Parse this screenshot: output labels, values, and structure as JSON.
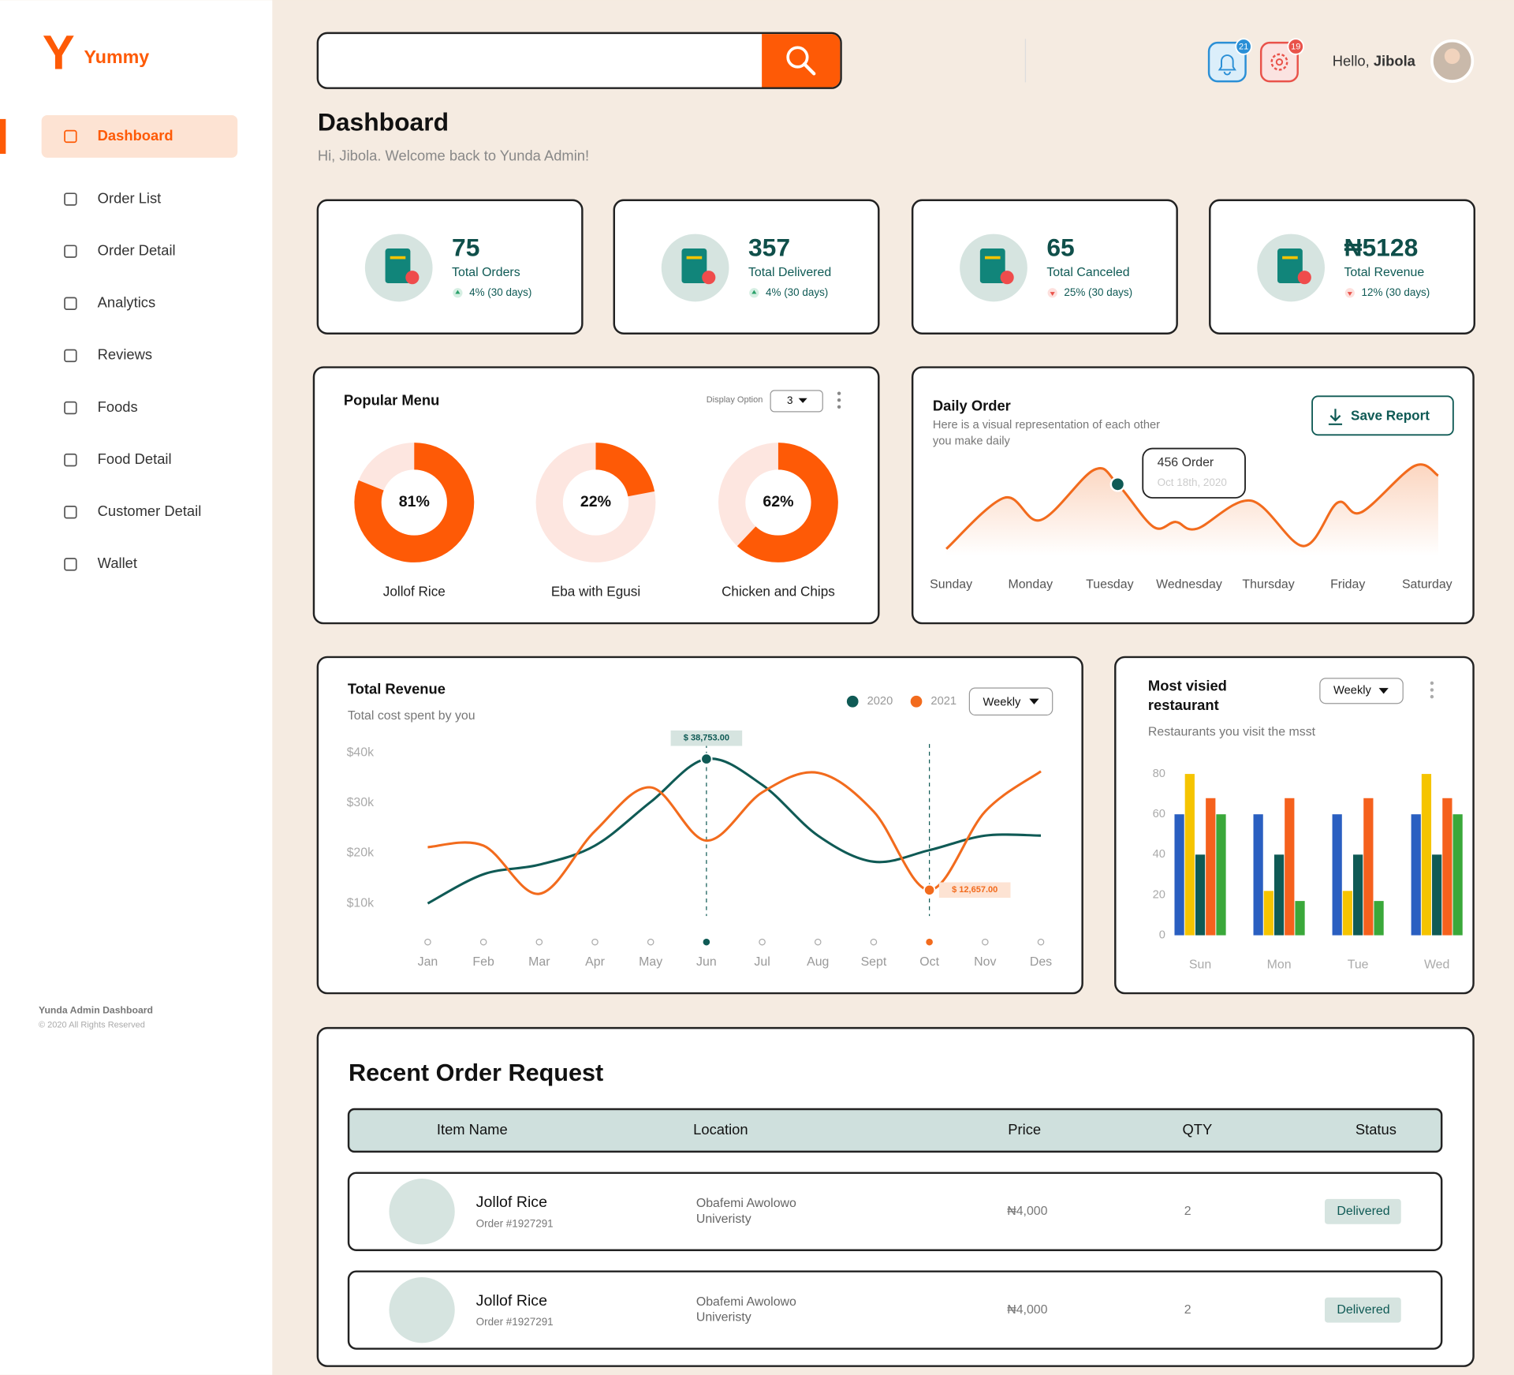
{
  "sidebar": {
    "logo": "Y",
    "brand": "Yummy",
    "active": 0,
    "nav": [
      "Dashboard",
      "Order List",
      "Order Detail",
      "Analytics",
      "Reviews",
      "Foods",
      "Food Detail",
      "Customer Detail",
      "Wallet"
    ],
    "footer_title": "Yunda Admin Dashboard",
    "footer_note": "© 2020 All Rights Reserved"
  },
  "header": {
    "greeting": "Hello,",
    "user": "Jibola",
    "notifications": 21,
    "alerts": 19
  },
  "page": {
    "title": "Dashboard",
    "subtitle": "Hi, Jibola. Welcome back to Yunda Admin!"
  },
  "stats": [
    {
      "value": "75",
      "label": "Total Orders",
      "change": "4% (30 days)",
      "trend": "up"
    },
    {
      "value": "357",
      "label": "Total Delivered",
      "change": "4% (30 days)",
      "trend": "up"
    },
    {
      "value": "65",
      "label": "Total Canceled",
      "change": "25% (30 days)",
      "trend": "down"
    },
    {
      "value": "₦5128",
      "label": "Total Revenue",
      "change": "12% (30 days)",
      "trend": "down"
    }
  ],
  "popular_menu": {
    "type": "donut",
    "title": "Popular Menu",
    "display_option_label": "Display Option",
    "display_option": 3,
    "categories": [
      "Jollof Rice",
      "Eba with Egusi",
      "Chicken and Chips"
    ],
    "values": [
      81,
      22,
      62
    ],
    "value_labels": [
      "81%",
      "22%",
      "62%"
    ],
    "color": "#fe5a06",
    "track_color": "#fde6e0"
  },
  "daily_order": {
    "type": "line",
    "title": "Daily Order",
    "subtitle": [
      "Here is a visual representation of each other",
      "you make daily"
    ],
    "button": "Save Report",
    "tooltip": {
      "title": "456 Order",
      "date": "Oct 18th, 2020",
      "index": 4
    },
    "categories": [
      "Sunday",
      "Monday",
      "Tuesday",
      "Wednesday",
      "Thursday",
      "Friday",
      "Saturday"
    ],
    "x": [
      -0.06,
      0.67,
      1.13,
      1.8,
      2.1,
      2.55,
      2.83,
      3.1,
      3.78,
      4.44,
      4.87,
      5.17,
      5.84,
      6.14
    ],
    "values": [
      113,
      384,
      266,
      532,
      456,
      230,
      256,
      220,
      369,
      128,
      358,
      307,
      553,
      502
    ],
    "xlim": [
      0,
      6
    ],
    "ylim": [
      0,
      600
    ],
    "color": "#f26b1d"
  },
  "total_revenue": {
    "type": "line",
    "title": "Total Revenue",
    "subtitle": "Total cost spent by you",
    "dropdown": "Weekly",
    "categories": [
      "Jan",
      "Feb",
      "Mar",
      "Apr",
      "May",
      "Jun",
      "Jul",
      "Aug",
      "Sept",
      "Oct",
      "Nov",
      "Des"
    ],
    "series": [
      {
        "name": "2020",
        "color": "#0f5a55",
        "values": [
          10000,
          15800,
          17700,
          21500,
          30200,
          38753,
          33600,
          23500,
          18300,
          20600,
          23500,
          23500
        ],
        "value_labels": [
          null,
          null,
          null,
          null,
          null,
          "$ 38,753.00",
          null,
          null,
          null,
          null,
          null,
          null
        ]
      },
      {
        "name": "2021",
        "color": "#f26b1d",
        "values": [
          21200,
          21500,
          11900,
          24400,
          33100,
          22500,
          32100,
          36000,
          28300,
          12657,
          28300,
          36300
        ],
        "value_labels": [
          null,
          null,
          null,
          null,
          null,
          null,
          null,
          null,
          null,
          "$ 12,657.00",
          null,
          null
        ]
      }
    ],
    "ylim": [
      10000,
      40000
    ],
    "yticks": [
      {
        "value": 10000,
        "label": "$10k"
      },
      {
        "value": 20000,
        "label": "$20k"
      },
      {
        "value": 30000,
        "label": "$30k"
      },
      {
        "value": 40000,
        "label": "$40k"
      }
    ]
  },
  "most_visited": {
    "type": "bar",
    "title": [
      "Most visied",
      "restaurant"
    ],
    "subtitle": "Restaurants you visit the msst",
    "dropdown": "Weekly",
    "categories": [
      "Sun",
      "Mon",
      "Tue",
      "Wed"
    ],
    "series": [
      {
        "color": "#2a5fc1",
        "values": [
          60,
          60,
          60,
          60
        ]
      },
      {
        "color": "#f5c400",
        "values": [
          80,
          22,
          22,
          80
        ]
      },
      {
        "color": "#0f5a55",
        "values": [
          40,
          40,
          40,
          40
        ]
      },
      {
        "color": "#f5611d",
        "values": [
          68,
          68,
          68,
          68
        ]
      },
      {
        "color": "#3aa83a",
        "values": [
          60,
          17,
          17,
          60
        ]
      }
    ],
    "ylim": [
      0,
      80
    ],
    "yticks": [
      0,
      20,
      40,
      60,
      80
    ]
  },
  "recent_orders": {
    "title": "Recent Order Request",
    "columns": [
      "Item Name",
      "Location",
      "Price",
      "QTY",
      "Status"
    ],
    "rows": [
      {
        "name": "Jollof Rice",
        "order": "Order #1927291",
        "location": [
          "Obafemi Awolowo",
          "Univeristy"
        ],
        "price": "₦4,000",
        "qty": 2,
        "status": "Delivered"
      },
      {
        "name": "Jollof Rice",
        "order": "Order #1927291",
        "location": [
          "Obafemi Awolowo",
          "Univeristy"
        ],
        "price": "₦4,000",
        "qty": 2,
        "status": "Delivered"
      }
    ]
  }
}
